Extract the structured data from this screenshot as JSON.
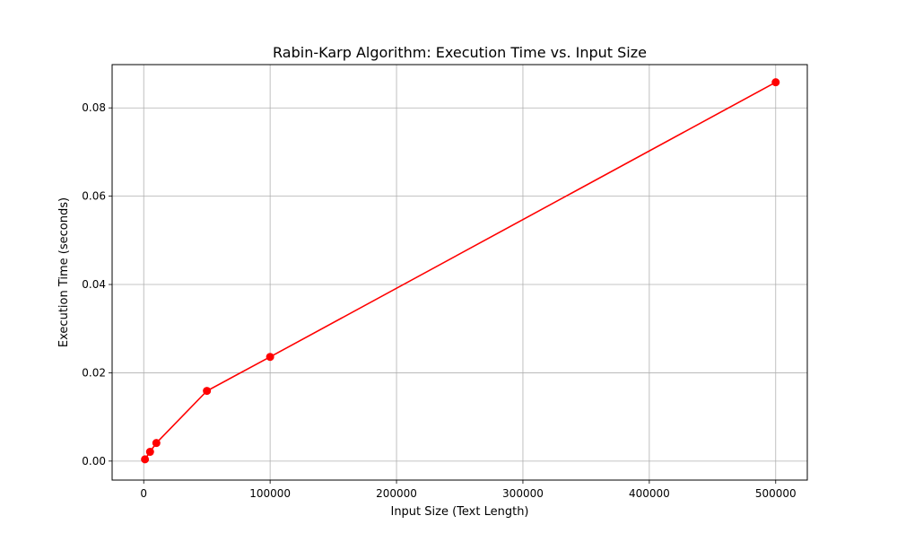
{
  "chart_data": {
    "type": "line",
    "title": "Rabin-Karp Algorithm: Execution Time vs. Input Size",
    "xlabel": "Input Size (Text Length)",
    "ylabel": "Execution Time (seconds)",
    "xlim": [
      -25000,
      525000
    ],
    "ylim": [
      -0.0043,
      0.0898
    ],
    "x_ticks": [
      0,
      100000,
      200000,
      300000,
      400000,
      500000
    ],
    "x_tick_labels": [
      "0",
      "100000",
      "200000",
      "300000",
      "400000",
      "500000"
    ],
    "y_ticks": [
      0.0,
      0.02,
      0.04,
      0.06,
      0.08
    ],
    "y_tick_labels": [
      "0.00",
      "0.02",
      "0.04",
      "0.06",
      "0.08"
    ],
    "grid": true,
    "series": [
      {
        "color": "#ff0000",
        "marker": "circle",
        "x": [
          1000,
          5000,
          10000,
          50000,
          100000,
          500000
        ],
        "y": [
          0.0004,
          0.0021,
          0.0041,
          0.0159,
          0.0236,
          0.0858
        ]
      }
    ]
  }
}
